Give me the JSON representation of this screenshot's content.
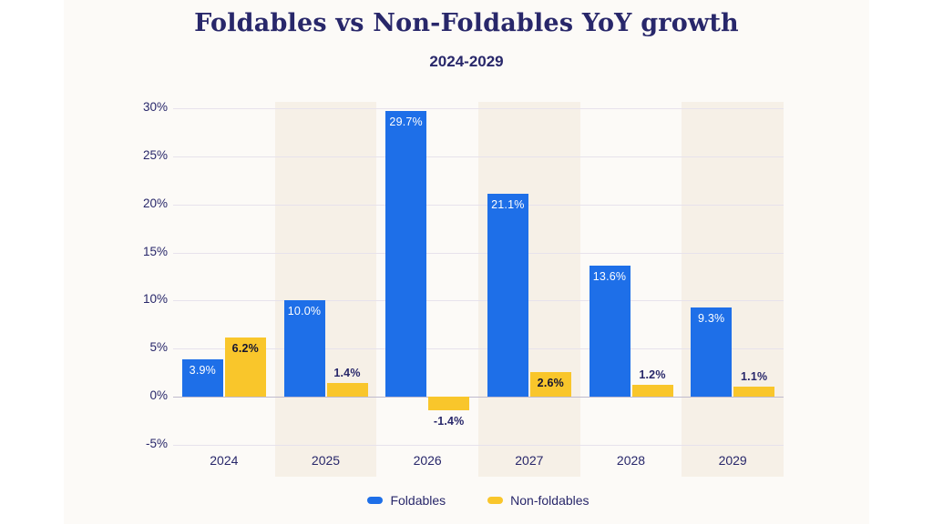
{
  "page": {
    "background": "#ffffff",
    "card_background": "#fcfaf7",
    "accent_navy": "#28276a"
  },
  "header": {
    "title": "Foldables vs Non-Foldables YoY growth",
    "subtitle": "2024-2029"
  },
  "chart_data": {
    "type": "bar",
    "title": "Foldables vs Non-Foldables YoY growth",
    "subtitle": "2024-2029",
    "categories": [
      "2024",
      "2025",
      "2026",
      "2027",
      "2028",
      "2029"
    ],
    "series": [
      {
        "name": "Foldables",
        "color": "#1e6fe8",
        "values": [
          3.9,
          10.0,
          29.7,
          21.1,
          13.6,
          9.3
        ],
        "labels": [
          "3.9%",
          "10.0%",
          "29.7%",
          "21.1%",
          "13.6%",
          "9.3%"
        ]
      },
      {
        "name": "Non-foldables",
        "color": "#f9c62b",
        "values": [
          6.2,
          1.4,
          -1.4,
          2.6,
          1.2,
          1.1
        ],
        "labels": [
          "6.2%",
          "1.4%",
          "-1.4%",
          "2.6%",
          "1.2%",
          "1.1%"
        ]
      }
    ],
    "y_axis": {
      "min": -5,
      "max": 30,
      "step": 5,
      "tick_labels": [
        "30%",
        "25%",
        "20%",
        "15%",
        "10%",
        "5%",
        "0%",
        "-5%"
      ]
    },
    "grid": true,
    "gridline_color": "#e7e2ec",
    "zero_line_color": "#bfbacd",
    "band_color": "#f6f0e7",
    "banded_category_indices": [
      1,
      3,
      5
    ],
    "legend_position": "bottom"
  },
  "legend": {
    "items": [
      {
        "label": "Foldables",
        "color": "#1e6fe8"
      },
      {
        "label": "Non-foldables",
        "color": "#f9c62b"
      }
    ]
  }
}
